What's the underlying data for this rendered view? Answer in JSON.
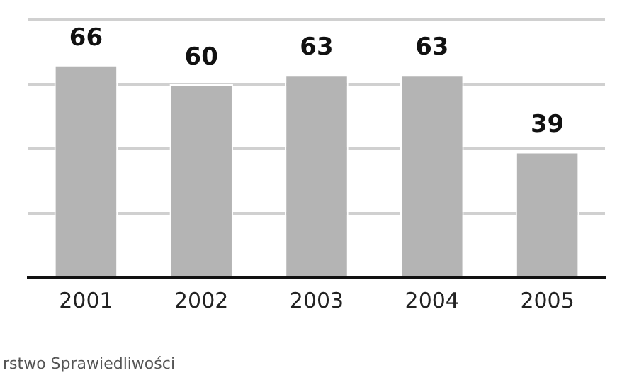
{
  "chart_data": {
    "type": "bar",
    "categories": [
      "2001",
      "2002",
      "2003",
      "2004",
      "2005"
    ],
    "values": [
      66,
      60,
      63,
      63,
      39
    ],
    "color": "#b4b4b4",
    "ylim": [
      0,
      80
    ],
    "yticks": [
      {
        "value": 0,
        "label": null
      },
      {
        "value": 20,
        "label": null
      },
      {
        "value": 40,
        "label": null
      },
      {
        "value": 60,
        "label": null
      },
      {
        "value": 80,
        "label": null
      }
    ],
    "grid": "y",
    "data_labels": true,
    "tick_labels": "x",
    "legend": false,
    "annotations": [
      "rstwo Sprawiedliwości"
    ]
  }
}
